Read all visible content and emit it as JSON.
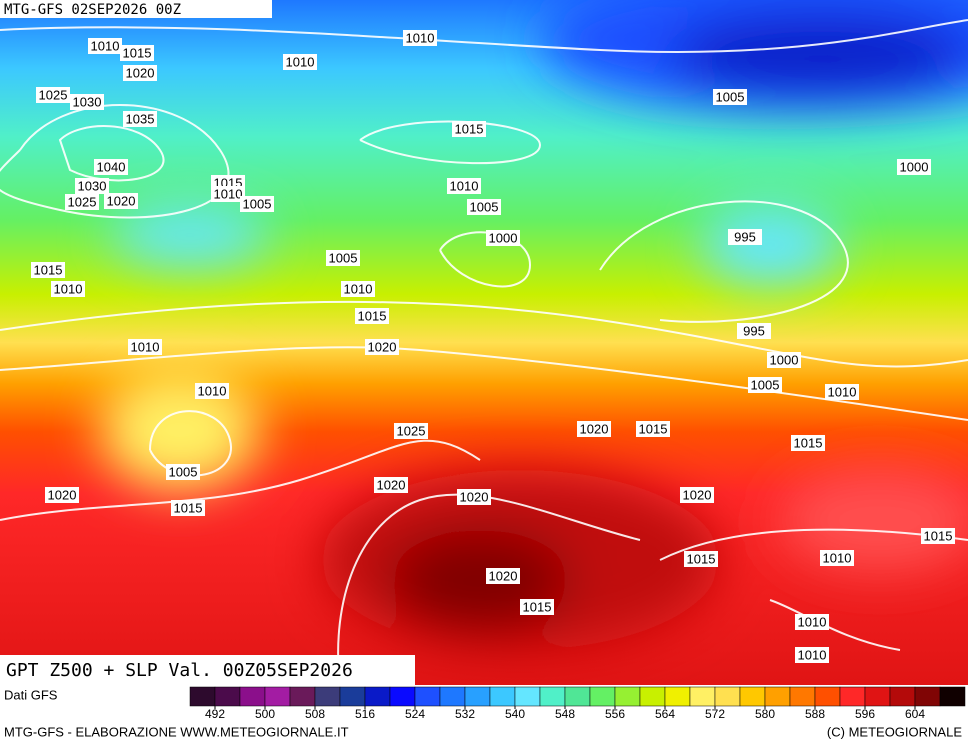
{
  "header": {
    "run": "MTG-GFS 02SEP2026 00Z"
  },
  "map": {
    "title": "GPT Z500 + SLP Val. 00Z05SEP2026",
    "isobar_labels": [
      1010,
      1015,
      1020,
      1010,
      1010,
      1025,
      1030,
      1035,
      1005,
      1015,
      1040,
      1000,
      1015,
      1010,
      1030,
      1010,
      1025,
      1020,
      1005,
      1005,
      1000,
      995,
      1005,
      1015,
      1010,
      1010,
      1015,
      995,
      1010,
      1020,
      1000,
      1005,
      1010,
      1010,
      1025,
      1020,
      1015,
      1015,
      1005,
      1020,
      1020,
      1020,
      1020,
      1015,
      1015,
      1015,
      1010,
      1020,
      1015,
      1010,
      1010
    ]
  },
  "legend": {
    "source": "Dati GFS",
    "range": [
      488,
      612
    ],
    "colors": [
      "#2d0a2d",
      "#4b0b4b",
      "#8b0f8b",
      "#a31ca3",
      "#6a1a5a",
      "#3c3c7a",
      "#1a3c9a",
      "#0a1ac8",
      "#0a0aff",
      "#1e50ff",
      "#1e78ff",
      "#28a0ff",
      "#3cc8ff",
      "#64e6ff",
      "#50f0c8",
      "#50e696",
      "#64f064",
      "#96f032",
      "#c8f000",
      "#f0f000",
      "#fff064",
      "#ffe050",
      "#ffc800",
      "#ffa000",
      "#ff7800",
      "#ff5000",
      "#ff2828",
      "#e01414",
      "#b40a0a",
      "#800505",
      "#100000"
    ],
    "ticks": [
      492,
      500,
      508,
      516,
      524,
      532,
      540,
      548,
      556,
      564,
      572,
      580,
      588,
      596,
      604
    ]
  },
  "footer": {
    "left": "MTG-GFS - ELABORAZIONE WWW.METEOGIORNALE.IT",
    "right": "(C) METEOGIORNALE"
  }
}
